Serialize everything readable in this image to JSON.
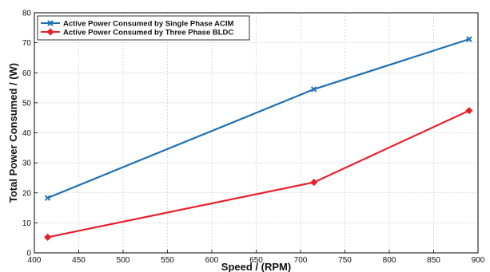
{
  "chart_data": {
    "type": "line",
    "title": "",
    "xlabel": "Speed / (RPM)",
    "ylabel": "Total Power Consumed / (W)",
    "xlim": [
      400,
      900
    ],
    "ylim": [
      0,
      80
    ],
    "xticks": [
      400,
      450,
      500,
      550,
      600,
      650,
      700,
      750,
      800,
      850,
      900
    ],
    "yticks": [
      0,
      10,
      20,
      30,
      40,
      50,
      60,
      70,
      80
    ],
    "xtick_labels": [
      "400",
      "450",
      "500",
      "550",
      "600",
      "650",
      "700",
      "750",
      "800",
      "850",
      "900"
    ],
    "ytick_labels": [
      "0",
      "10",
      "20",
      "30",
      "40",
      "50",
      "60",
      "70",
      "80"
    ],
    "grid": true,
    "legend_position": "top-left",
    "series": [
      {
        "name": "Active Power Consumed by Single Phase ACIM",
        "color": "#1f6fb5",
        "marker": "x",
        "x": [
          415,
          715,
          890
        ],
        "y": [
          18.3,
          54.5,
          71.2
        ]
      },
      {
        "name": "Active Power Consumed by Three Phase BLDC",
        "color": "#e8202a",
        "marker": "diamond",
        "x": [
          415,
          715,
          890
        ],
        "y": [
          5.2,
          23.5,
          47.4
        ]
      }
    ]
  }
}
